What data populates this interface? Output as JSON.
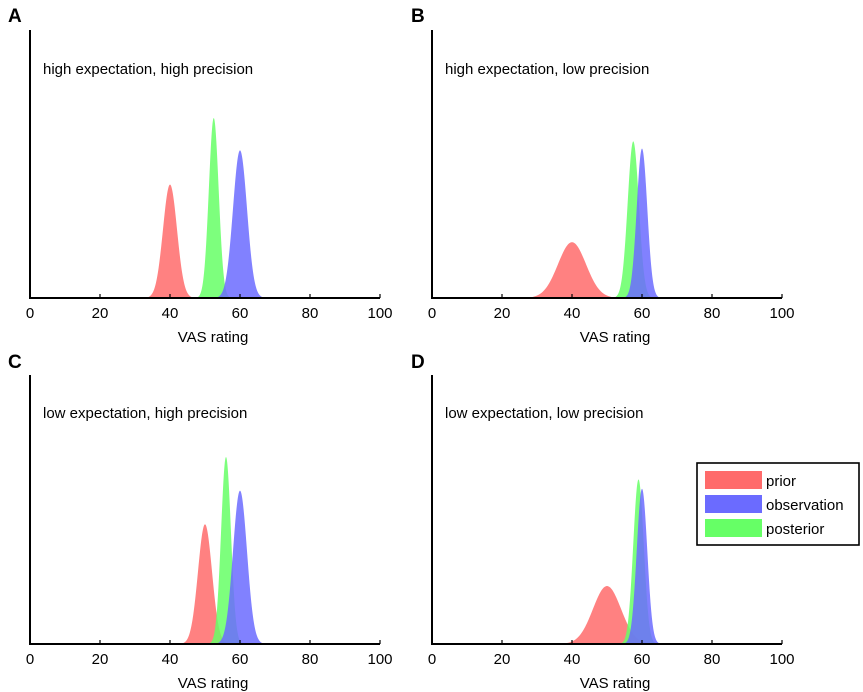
{
  "chart_data": [
    {
      "type": "area",
      "panel": "A",
      "title": "high expectation, high precision",
      "xlabel": "VAS rating",
      "xlim": [
        0,
        100
      ],
      "xticks": [
        "0",
        "20",
        "40",
        "60",
        "80",
        "100"
      ],
      "y_axis_ticks": false,
      "series": [
        {
          "name": "prior",
          "color": "#ff6b6b",
          "peak_x": 40,
          "sd": 2.0,
          "peak_y": 0.63
        },
        {
          "name": "posterior",
          "color": "#66ff66",
          "peak_x": 52.5,
          "sd": 1.4,
          "peak_y": 1.0
        },
        {
          "name": "observation",
          "color": "#6b6bff",
          "peak_x": 60,
          "sd": 2.0,
          "peak_y": 0.82
        }
      ]
    },
    {
      "type": "area",
      "panel": "B",
      "title": "high expectation, low precision",
      "xlabel": "VAS rating",
      "xlim": [
        0,
        100
      ],
      "xticks": [
        "0",
        "20",
        "40",
        "60",
        "80",
        "100"
      ],
      "y_axis_ticks": false,
      "series": [
        {
          "name": "prior",
          "color": "#ff6b6b",
          "peak_x": 40,
          "sd": 4.0,
          "peak_y": 0.31
        },
        {
          "name": "posterior",
          "color": "#66ff66",
          "peak_x": 57.5,
          "sd": 1.6,
          "peak_y": 0.87
        },
        {
          "name": "observation",
          "color": "#6b6bff",
          "peak_x": 60,
          "sd": 1.5,
          "peak_y": 0.83
        }
      ]
    },
    {
      "type": "area",
      "panel": "C",
      "title": "low expectation, high precision",
      "xlabel": "VAS rating",
      "xlim": [
        0,
        100
      ],
      "xticks": [
        "0",
        "20",
        "40",
        "60",
        "80",
        "100"
      ],
      "y_axis_ticks": false,
      "series": [
        {
          "name": "prior",
          "color": "#ff6b6b",
          "peak_x": 50,
          "sd": 2.0,
          "peak_y": 0.64
        },
        {
          "name": "posterior",
          "color": "#66ff66",
          "peak_x": 56,
          "sd": 1.4,
          "peak_y": 1.0
        },
        {
          "name": "observation",
          "color": "#6b6bff",
          "peak_x": 60,
          "sd": 2.0,
          "peak_y": 0.82
        }
      ]
    },
    {
      "type": "area",
      "panel": "D",
      "title": "low expectation, low precision",
      "xlabel": "VAS rating",
      "xlim": [
        0,
        100
      ],
      "xticks": [
        "0",
        "20",
        "40",
        "60",
        "80",
        "100"
      ],
      "y_axis_ticks": false,
      "series": [
        {
          "name": "prior",
          "color": "#ff6b6b",
          "peak_x": 50,
          "sd": 4.0,
          "peak_y": 0.31
        },
        {
          "name": "posterior",
          "color": "#66ff66",
          "peak_x": 59,
          "sd": 1.5,
          "peak_y": 0.88
        },
        {
          "name": "observation",
          "color": "#6b6bff",
          "peak_x": 60,
          "sd": 1.5,
          "peak_y": 0.83
        }
      ]
    }
  ],
  "legend": {
    "placement": "right of panel D",
    "items": [
      {
        "label": "prior",
        "color": "#ff6b6b"
      },
      {
        "label": "observation",
        "color": "#6b6bff"
      },
      {
        "label": "posterior",
        "color": "#66ff66"
      }
    ]
  }
}
